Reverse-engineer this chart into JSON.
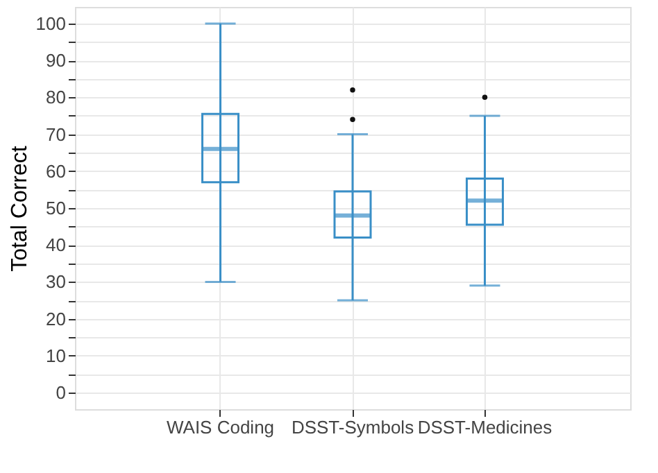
{
  "chart_data": {
    "type": "box",
    "ylabel": "Total Correct",
    "categories": [
      "WAIS Coding",
      "DSST-Symbols",
      "DSST-Medicines"
    ],
    "boxes": [
      {
        "low": 30,
        "q1": 57,
        "median": 66,
        "q3": 75.5,
        "high": 100
      },
      {
        "low": 25,
        "q1": 42,
        "median": 48,
        "q3": 54.5,
        "high": 70,
        "outliers": [
          74,
          82
        ]
      },
      {
        "low": 29,
        "q1": 45.5,
        "median": 52,
        "q3": 58,
        "high": 75,
        "outliers": [
          80
        ]
      }
    ],
    "color": "#3a8fc7",
    "ylim": [
      -4.5,
      104.5
    ],
    "yticks": [
      0,
      {
        "value": 5,
        "label": null
      },
      10,
      {
        "value": 15,
        "label": null
      },
      20,
      {
        "value": 25,
        "label": null
      },
      30,
      {
        "value": 35,
        "label": null
      },
      40,
      {
        "value": 45,
        "label": null
      },
      50,
      {
        "value": 55,
        "label": null
      },
      60,
      {
        "value": 65,
        "label": null
      },
      70,
      {
        "value": 75,
        "label": null
      },
      80,
      {
        "value": 85,
        "label": null
      },
      90,
      {
        "value": 95,
        "label": null
      },
      100
    ],
    "grid": true,
    "marker": "circle"
  }
}
